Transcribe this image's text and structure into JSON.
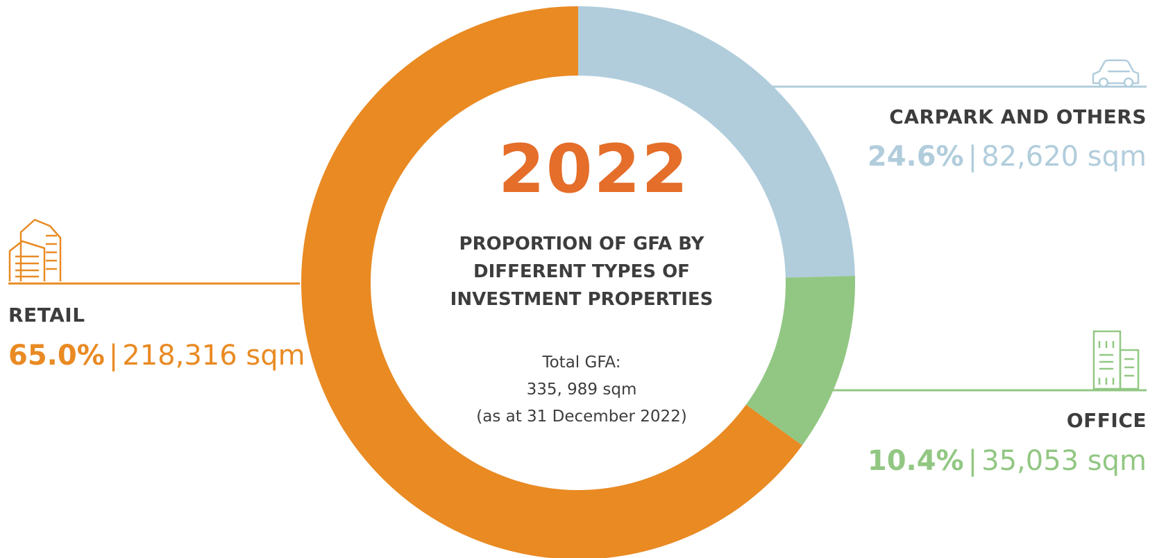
{
  "colors": {
    "retail": "#E98A23",
    "carpark": "#B1CDDC",
    "office": "#92C783",
    "year": "#E46E2A",
    "text_dark": "#3d3d3d"
  },
  "center": {
    "year": "2022",
    "title_lines": [
      "PROPORTION OF GFA BY",
      "DIFFERENT  TYPES OF",
      "INVESTMENT PROPERTIES"
    ],
    "total_lines": [
      "Total GFA:",
      "335, 989 sqm",
      "(as at 31 December 2022)"
    ]
  },
  "labels": {
    "retail": {
      "title": "RETAIL",
      "pct": "65.0%",
      "sep": "|",
      "area": "218,316 sqm",
      "icon": "retail-buildings-icon"
    },
    "carpark": {
      "title": "CARPARK AND OTHERS",
      "pct": "24.6%",
      "sep": "|",
      "area": "82,620 sqm",
      "icon": "car-icon"
    },
    "office": {
      "title": "OFFICE",
      "pct": "10.4%",
      "sep": "|",
      "area": "35,053 sqm",
      "icon": "office-building-icon"
    }
  },
  "chart_data": {
    "type": "pie",
    "title": "PROPORTION OF GFA BY DIFFERENT  TYPES OF INVESTMENT PROPERTIES",
    "categories": [
      "CARPARK AND OTHERS",
      "OFFICE",
      "RETAIL"
    ],
    "values": [
      24.6,
      10.4,
      65.0
    ],
    "areas_sqm": [
      82620,
      35053,
      218316
    ],
    "colors": [
      "#B1CDDC",
      "#92C783",
      "#E98A23"
    ],
    "start": "top, clockwise",
    "donut": true
  }
}
